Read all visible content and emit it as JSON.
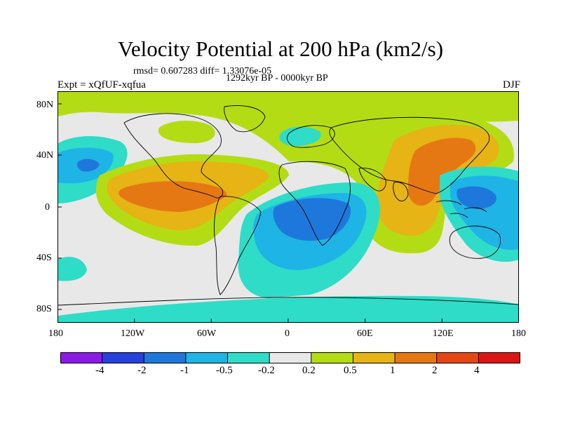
{
  "title": "Velocity Potential at 200 hPa (km2/s)",
  "stats": "rmsd= 0.607283  diff= 1.33076e-05",
  "period": "1292kyr BP - 0000kyr BP",
  "experiment": "Expt = xQfUF-xqfua",
  "season": "DJF",
  "lat_labels": [
    "80N",
    "40N",
    "0",
    "40S",
    "80S"
  ],
  "lon_labels": [
    "180",
    "120W",
    "60W",
    "0",
    "60E",
    "120E",
    "180"
  ],
  "colorbar": {
    "labels": [
      "-4",
      "-2",
      "-1",
      "-0.5",
      "-0.2",
      "0.2",
      "0.5",
      "1",
      "2",
      "4"
    ],
    "colors": [
      "#8c1ae6",
      "#2840dc",
      "#1e78dc",
      "#1eb4e6",
      "#2edcc8",
      "#e8e8e8",
      "#b4dc14",
      "#e6b414",
      "#e67814",
      "#e64614",
      "#dc1414"
    ]
  }
}
